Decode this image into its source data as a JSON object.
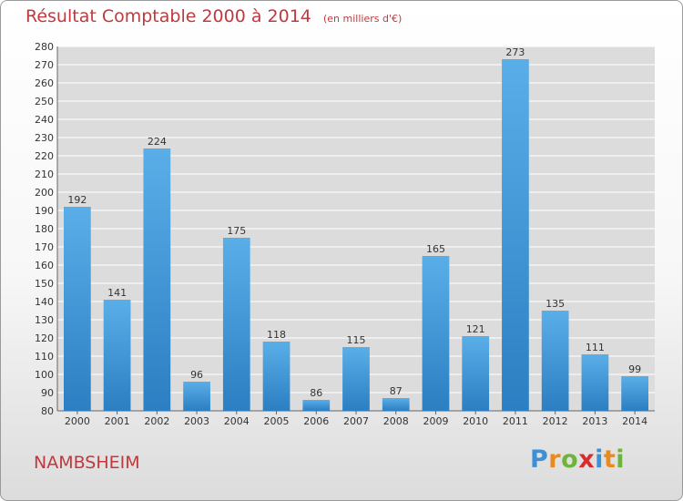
{
  "title": "Résultat Comptable 2000 à 2014",
  "subtitle": "(en milliers d'€)",
  "commune": "NAMBSHEIM",
  "logo": {
    "text": "Proxiti",
    "letters": [
      {
        "char": "P",
        "color": "#3d8fd6"
      },
      {
        "char": "r",
        "color": "#e98a1f"
      },
      {
        "char": "o",
        "color": "#6fb43a"
      },
      {
        "char": "x",
        "color": "#d92b2b"
      },
      {
        "char": "i",
        "color": "#3d8fd6"
      },
      {
        "char": "t",
        "color": "#e98a1f"
      },
      {
        "char": "i",
        "color": "#6fb43a"
      }
    ]
  },
  "colors": {
    "bar_top": "#5aaee8",
    "bar_bottom": "#2b7fc2",
    "title": "#c0393e",
    "grid": "#ffffff",
    "plot_bg": "#dcdcdc"
  },
  "chart_data": {
    "type": "bar",
    "title": "Résultat Comptable 2000 à 2014",
    "subtitle": "(en milliers d'€)",
    "categories": [
      "2000",
      "2001",
      "2002",
      "2003",
      "2004",
      "2005",
      "2006",
      "2007",
      "2008",
      "2009",
      "2010",
      "2011",
      "2012",
      "2013",
      "2014"
    ],
    "values": [
      192,
      141,
      224,
      96,
      175,
      118,
      86,
      115,
      87,
      165,
      121,
      273,
      135,
      111,
      99
    ],
    "ylim": [
      80,
      280
    ],
    "yticks": [
      80,
      90,
      100,
      110,
      120,
      130,
      140,
      150,
      160,
      170,
      180,
      190,
      200,
      210,
      220,
      230,
      240,
      250,
      260,
      270,
      280
    ],
    "grid": true,
    "xlabel": "",
    "ylabel": ""
  }
}
